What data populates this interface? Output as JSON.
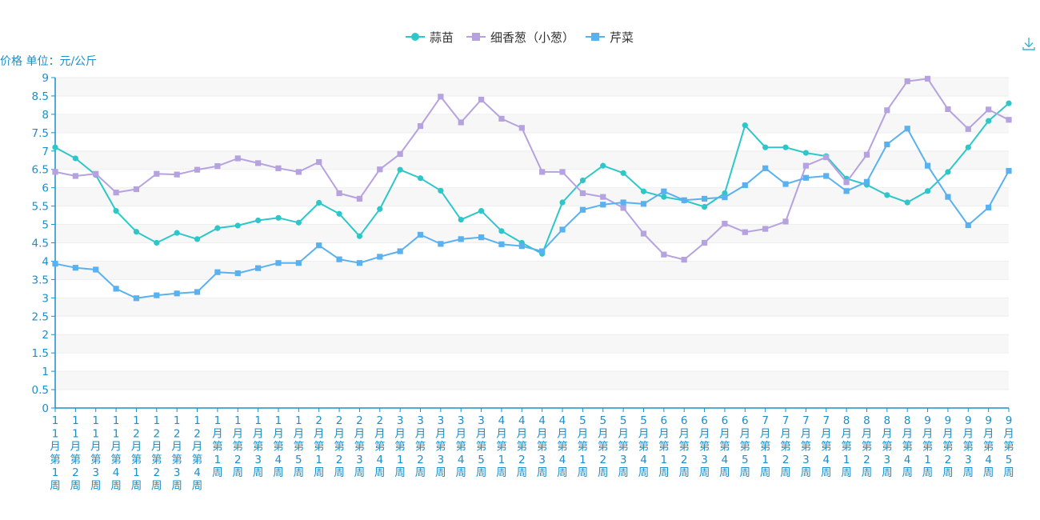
{
  "chart_data": {
    "type": "line",
    "ylabel": "价格 单位：元/公斤",
    "ylim": [
      0,
      9
    ],
    "yticks": [
      "0",
      "0.5",
      "1",
      "1.5",
      "2",
      "2.5",
      "3",
      "3.5",
      "4",
      "4.5",
      "5",
      "5.5",
      "6",
      "6.5",
      "7",
      "7.5",
      "8",
      "8.5",
      "9"
    ],
    "legend_position": "top-center",
    "grid": true,
    "categories": [
      "11月第1周",
      "11月第2周",
      "11月第3周",
      "11月第4周",
      "12月第1周",
      "12月第2周",
      "12月第3周",
      "12月第4周",
      "1月第1周",
      "1月第2周",
      "1月第3周",
      "1月第4周",
      "1月第5周",
      "2月第1周",
      "2月第2周",
      "2月第3周",
      "2月第4周",
      "3月第1周",
      "3月第2周",
      "3月第3周",
      "3月第4周",
      "3月第5周",
      "4月第1周",
      "4月第2周",
      "4月第3周",
      "4月第4周",
      "5月第1周",
      "5月第2周",
      "5月第3周",
      "5月第4周",
      "6月第1周",
      "6月第2周",
      "6月第3周",
      "6月第4周",
      "6月第5周",
      "7月第1周",
      "7月第2周",
      "7月第3周",
      "7月第4周",
      "8月第1周",
      "8月第2周",
      "8月第3周",
      "8月第4周",
      "9月第1周",
      "9月第2周",
      "9月第3周",
      "9月第4周",
      "9月第5周"
    ],
    "series": [
      {
        "name": "蒜苗",
        "color": "#2ec7c9",
        "marker": "circle",
        "values": [
          7.1,
          6.8,
          6.35,
          5.37,
          4.8,
          4.5,
          4.77,
          4.6,
          4.9,
          4.97,
          5.11,
          5.18,
          5.05,
          5.59,
          5.29,
          4.68,
          5.42,
          6.49,
          6.26,
          5.92,
          5.13,
          5.37,
          4.82,
          4.5,
          4.2,
          5.6,
          6.2,
          6.6,
          6.4,
          5.9,
          5.75,
          5.65,
          5.48,
          5.85,
          7.7,
          7.1,
          7.1,
          6.95,
          6.86,
          6.25,
          6.08,
          5.8,
          5.6,
          5.91,
          6.43,
          7.1,
          7.82,
          8.3
        ]
      },
      {
        "name": "细香葱（小葱）",
        "color": "#b6a2de",
        "marker": "square",
        "values": [
          6.43,
          6.32,
          6.38,
          5.87,
          5.96,
          6.38,
          6.36,
          6.49,
          6.59,
          6.8,
          6.67,
          6.53,
          6.43,
          6.7,
          5.85,
          5.7,
          6.5,
          6.92,
          7.68,
          8.48,
          7.78,
          8.4,
          7.88,
          7.63,
          6.43,
          6.43,
          5.85,
          5.75,
          5.45,
          4.75,
          4.18,
          4.04,
          4.5,
          5.02,
          4.79,
          4.88,
          5.08,
          6.6,
          6.83,
          6.15,
          6.9,
          8.11,
          8.9,
          8.97,
          8.14,
          7.6,
          8.13,
          7.85
        ]
      },
      {
        "name": "芹菜",
        "color": "#5ab1ef",
        "marker": "square",
        "values": [
          3.93,
          3.82,
          3.77,
          3.25,
          2.99,
          3.07,
          3.12,
          3.16,
          3.7,
          3.67,
          3.81,
          3.95,
          3.95,
          4.43,
          4.05,
          3.95,
          4.12,
          4.27,
          4.72,
          4.47,
          4.6,
          4.65,
          4.46,
          4.41,
          4.27,
          4.86,
          5.4,
          5.54,
          5.6,
          5.56,
          5.9,
          5.66,
          5.7,
          5.74,
          6.07,
          6.53,
          6.1,
          6.27,
          6.32,
          5.91,
          6.16,
          7.18,
          7.61,
          6.6,
          5.75,
          4.98,
          5.46,
          6.46
        ]
      }
    ]
  },
  "toolbar": {
    "download_icon": "download-icon"
  }
}
